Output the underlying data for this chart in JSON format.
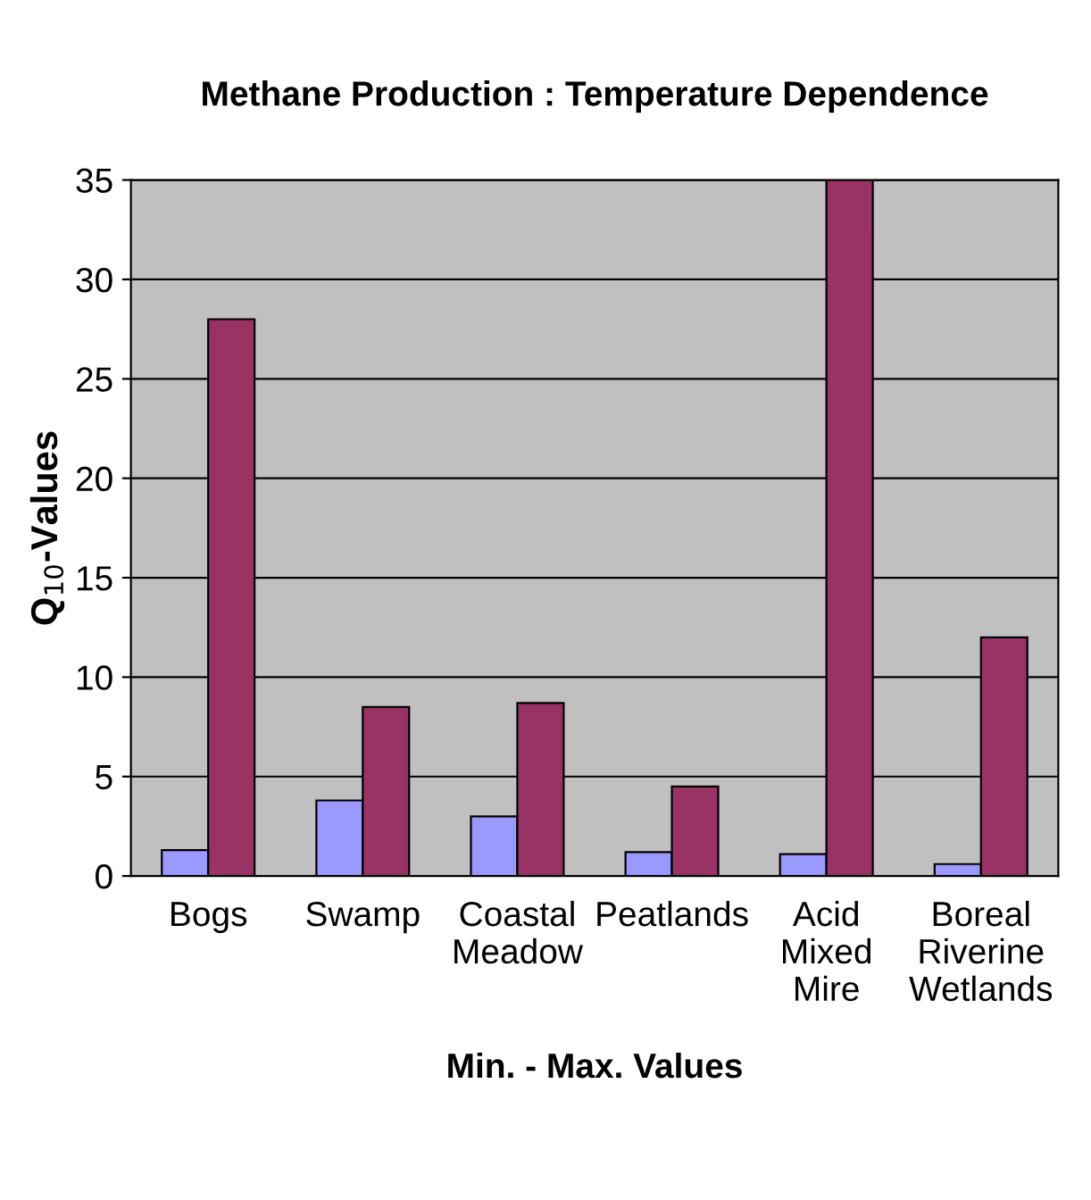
{
  "chart_data": {
    "type": "bar",
    "title": "Methane Production : Temperature Dependence",
    "xlabel": "Min. - Max. Values",
    "ylabel": "Q$_{10}$-Values",
    "categories": [
      "Bogs",
      "Swamp",
      "Coastal\nMeadow",
      "Peatlands",
      "Acid\nMixed\nMire",
      "Boreal\nRiverine\nWetlands"
    ],
    "series": [
      {
        "color": "#9999ff",
        "values": [
          1.3,
          3.8,
          3.0,
          1.2,
          1.1,
          0.6
        ]
      },
      {
        "color": "#993366",
        "values": [
          28,
          8.5,
          8.7,
          4.5,
          35,
          12
        ]
      }
    ],
    "ylim": [
      0,
      35
    ],
    "yticks": [
      0,
      5,
      10,
      15,
      20,
      25,
      30,
      35
    ],
    "grid": "y",
    "legend": false
  }
}
